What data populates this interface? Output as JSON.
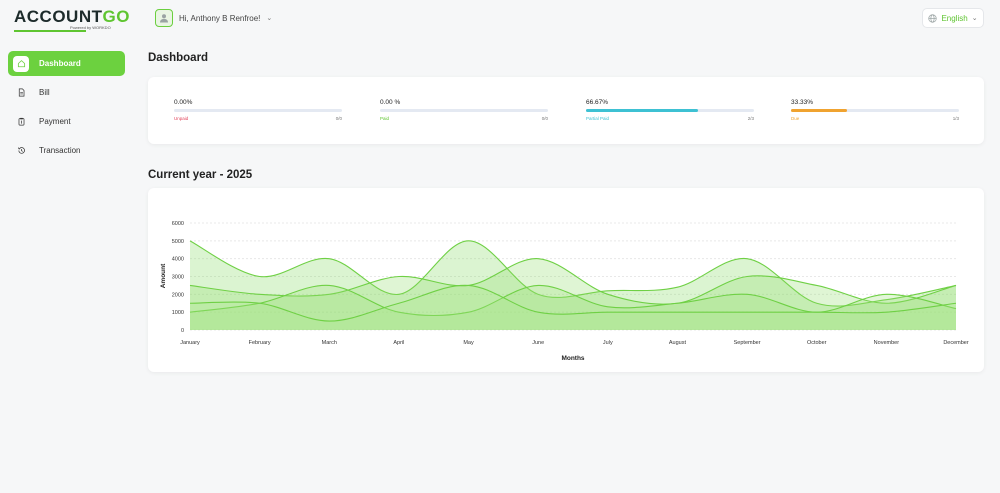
{
  "header": {
    "logo_main": "ACCOUNT",
    "logo_accent": "GO",
    "logo_sub": "Powered by WORKDO",
    "greeting": "Hi, Anthony B Renfroe!",
    "language": "English"
  },
  "sidebar": {
    "items": [
      {
        "label": "Dashboard",
        "icon": "home-icon",
        "active": true
      },
      {
        "label": "Bill",
        "icon": "document-icon",
        "active": false
      },
      {
        "label": "Payment",
        "icon": "clipboard-icon",
        "active": false
      },
      {
        "label": "Transaction",
        "icon": "history-icon",
        "active": false
      }
    ]
  },
  "page": {
    "title": "Dashboard",
    "chart_title": "Current year - 2025"
  },
  "stats": [
    {
      "percent": "0.00%",
      "label": "Unpaid",
      "count": "0/0",
      "fill": 0,
      "color": "#e2445c"
    },
    {
      "percent": "0.00 %",
      "label": "Paid",
      "count": "0/0",
      "fill": 0,
      "color": "#5fc531"
    },
    {
      "percent": "66.67%",
      "label": "Partial Paid",
      "count": "2/3",
      "fill": 0.6667,
      "color": "#3ec1d3"
    },
    {
      "percent": "33.33%",
      "label": "Due",
      "count": "1/3",
      "fill": 0.3333,
      "color": "#f0a330"
    }
  ],
  "chart_data": {
    "type": "area",
    "categories": [
      "January",
      "February",
      "March",
      "April",
      "May",
      "June",
      "July",
      "August",
      "September",
      "October",
      "November",
      "December"
    ],
    "xlabel": "Months",
    "ylabel": "Amount",
    "ylim": [
      0,
      6000
    ],
    "yticks": [
      0,
      1000,
      2000,
      3000,
      4000,
      5000,
      6000
    ],
    "grid": true,
    "series": [
      {
        "values": [
          5000,
          3000,
          4000,
          2000,
          5000,
          2000,
          2200,
          2400,
          4000,
          1500,
          1700,
          2500
        ],
        "color": "#7fd858"
      },
      {
        "values": [
          2500,
          2000,
          2000,
          3000,
          2500,
          4000,
          2000,
          1500,
          3000,
          2500,
          1500,
          2500
        ],
        "color": "#8cdc66"
      },
      {
        "values": [
          1000,
          1500,
          2500,
          1000,
          1000,
          2500,
          1300,
          1500,
          2000,
          1000,
          2000,
          1200
        ],
        "color": "#9ae076"
      },
      {
        "values": [
          1500,
          1500,
          500,
          1500,
          2500,
          1000,
          1000,
          1000,
          1000,
          1000,
          1000,
          1500
        ],
        "color": "#a8e587"
      }
    ]
  }
}
